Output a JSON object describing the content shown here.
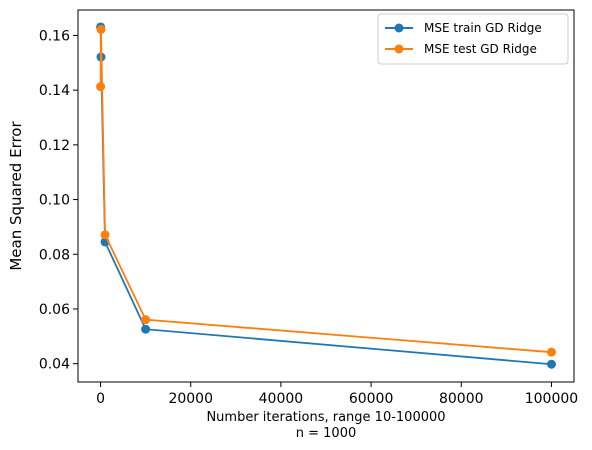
{
  "chart_data": {
    "type": "line",
    "title": "",
    "xlabel": "Number iterations, range 10-100000",
    "xlabel_sub": "n = 1000",
    "ylabel": "Mean Squared Error",
    "x": [
      10,
      100,
      1000,
      10000,
      100000
    ],
    "series": [
      {
        "name": "MSE train GD Ridge",
        "color": "#1f77b4",
        "values": [
          0.1631,
          0.1521,
          0.0845,
          0.0526,
          0.0398
        ]
      },
      {
        "name": "MSE test GD Ridge",
        "color": "#ff7f0e",
        "values": [
          0.1413,
          0.1622,
          0.0871,
          0.0561,
          0.0442
        ]
      }
    ],
    "xlim": [
      -5000,
      105000
    ],
    "ylim": [
      0.0333,
      0.1693
    ],
    "xticks": [
      0,
      20000,
      40000,
      60000,
      80000,
      100000
    ],
    "xtick_labels": [
      "0",
      "20000",
      "40000",
      "60000",
      "80000",
      "100000"
    ],
    "yticks": [
      0.04,
      0.06,
      0.08,
      0.1,
      0.12,
      0.14,
      0.16
    ],
    "ytick_labels": [
      "0.04",
      "0.06",
      "0.08",
      "0.10",
      "0.12",
      "0.14",
      "0.16"
    ],
    "grid": false,
    "legend_position": "top-right"
  }
}
